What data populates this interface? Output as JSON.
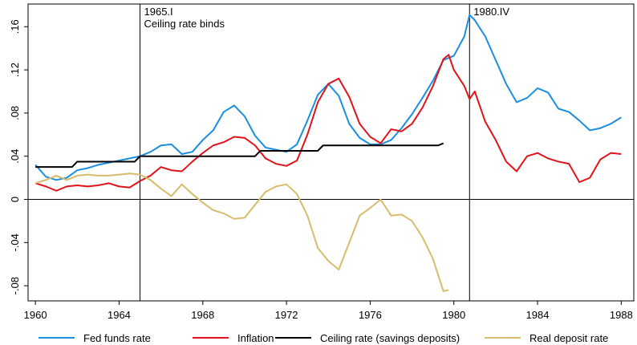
{
  "chart_data": {
    "type": "line",
    "xlim": [
      1959.65,
      1988.6
    ],
    "ylim": [
      -0.094,
      0.181
    ],
    "xticks": [
      1960,
      1964,
      1968,
      1972,
      1976,
      1980,
      1984,
      1988
    ],
    "yticks": [
      {
        "value": 0.16,
        "label": ".16"
      },
      {
        "value": 0.12,
        "label": ".12"
      },
      {
        "value": 0.08,
        "label": ".08"
      },
      {
        "value": 0.04,
        "label": ".04"
      },
      0,
      {
        "value": -0.04,
        "label": "-.04"
      },
      {
        "value": -0.08,
        "label": "-.08"
      }
    ],
    "zero_line": true,
    "vlines": [
      {
        "x": 1965,
        "labels": [
          "1965.I",
          "Ceiling rate binds"
        ]
      },
      {
        "x": 1980.75,
        "labels": [
          "1980.IV"
        ]
      }
    ],
    "series": [
      {
        "name": "Fed funds rate",
        "color": "#1a8fe0",
        "x": [
          1960,
          1960.5,
          1961,
          1961.5,
          1962,
          1962.5,
          1963,
          1963.5,
          1964,
          1964.5,
          1965,
          1965.5,
          1966,
          1966.5,
          1967,
          1967.5,
          1968,
          1968.5,
          1969,
          1969.5,
          1970,
          1970.5,
          1971,
          1971.5,
          1972,
          1972.5,
          1973,
          1973.5,
          1974,
          1974.5,
          1975,
          1975.5,
          1976,
          1976.5,
          1977,
          1977.5,
          1978,
          1978.5,
          1979,
          1979.5,
          1980,
          1980.5,
          1980.75,
          1981,
          1981.5,
          1982,
          1982.5,
          1983,
          1983.5,
          1984,
          1984.5,
          1985,
          1985.5,
          1986,
          1986.5,
          1987,
          1987.5,
          1988
        ],
        "values": [
          0.032,
          0.021,
          0.018,
          0.02,
          0.027,
          0.029,
          0.032,
          0.034,
          0.036,
          0.038,
          0.04,
          0.044,
          0.05,
          0.051,
          0.042,
          0.044,
          0.055,
          0.064,
          0.081,
          0.087,
          0.077,
          0.059,
          0.048,
          0.046,
          0.044,
          0.051,
          0.073,
          0.097,
          0.107,
          0.096,
          0.07,
          0.057,
          0.051,
          0.051,
          0.055,
          0.066,
          0.079,
          0.094,
          0.11,
          0.129,
          0.133,
          0.151,
          0.171,
          0.166,
          0.151,
          0.129,
          0.107,
          0.09,
          0.094,
          0.103,
          0.099,
          0.084,
          0.081,
          0.073,
          0.064,
          0.066,
          0.07,
          0.076
        ]
      },
      {
        "name": "Inflation",
        "color": "#e0131b",
        "x": [
          1960,
          1960.5,
          1961,
          1961.5,
          1962,
          1962.5,
          1963,
          1963.5,
          1964,
          1964.5,
          1965,
          1965.5,
          1966,
          1966.5,
          1967,
          1967.5,
          1968,
          1968.5,
          1969,
          1969.5,
          1970,
          1970.5,
          1971,
          1971.5,
          1972,
          1972.5,
          1973,
          1973.5,
          1974,
          1974.5,
          1975,
          1975.5,
          1976,
          1976.5,
          1977,
          1977.5,
          1978,
          1978.5,
          1979,
          1979.5,
          1979.75,
          1980,
          1980.5,
          1980.75,
          1981,
          1981.5,
          1982,
          1982.5,
          1983,
          1983.5,
          1984,
          1984.5,
          1985,
          1985.5,
          1986,
          1986.5,
          1987,
          1987.5,
          1988
        ],
        "values": [
          0.015,
          0.012,
          0.008,
          0.012,
          0.013,
          0.012,
          0.013,
          0.015,
          0.012,
          0.011,
          0.017,
          0.022,
          0.03,
          0.027,
          0.026,
          0.035,
          0.043,
          0.05,
          0.053,
          0.058,
          0.057,
          0.05,
          0.038,
          0.033,
          0.031,
          0.036,
          0.06,
          0.09,
          0.107,
          0.112,
          0.095,
          0.07,
          0.058,
          0.052,
          0.065,
          0.063,
          0.07,
          0.085,
          0.105,
          0.13,
          0.134,
          0.12,
          0.105,
          0.093,
          0.1,
          0.072,
          0.055,
          0.035,
          0.026,
          0.04,
          0.043,
          0.038,
          0.035,
          0.033,
          0.016,
          0.02,
          0.037,
          0.043,
          0.042
        ]
      },
      {
        "name": "Ceiling rate (savings deposits)",
        "color": "#000000",
        "x": [
          1960,
          1961.75,
          1962,
          1964.75,
          1965,
          1970.5,
          1970.75,
          1973.5,
          1973.75,
          1979.25,
          1979.5
        ],
        "values": [
          0.03,
          0.03,
          0.035,
          0.035,
          0.04,
          0.04,
          0.045,
          0.045,
          0.05,
          0.05,
          0.052
        ]
      },
      {
        "name": "Real deposit rate",
        "color": "#d8bb6b",
        "x": [
          1960,
          1960.5,
          1961,
          1961.5,
          1962,
          1962.5,
          1963,
          1963.5,
          1964,
          1964.5,
          1965,
          1965.5,
          1966,
          1966.5,
          1967,
          1967.5,
          1968,
          1968.5,
          1969,
          1969.5,
          1970,
          1970.5,
          1971,
          1971.5,
          1972,
          1972.5,
          1973,
          1973.5,
          1974,
          1974.5,
          1975,
          1975.5,
          1976,
          1976.5,
          1977,
          1977.5,
          1978,
          1978.5,
          1979,
          1979.5,
          1979.75
        ],
        "values": [
          0.015,
          0.018,
          0.022,
          0.018,
          0.022,
          0.023,
          0.022,
          0.022,
          0.023,
          0.024,
          0.023,
          0.018,
          0.01,
          0.003,
          0.014,
          0.005,
          -0.003,
          -0.01,
          -0.013,
          -0.018,
          -0.017,
          -0.005,
          0.007,
          0.012,
          0.014,
          0.005,
          -0.015,
          -0.045,
          -0.057,
          -0.065,
          -0.04,
          -0.015,
          -0.008,
          0.0,
          -0.015,
          -0.014,
          -0.02,
          -0.035,
          -0.055,
          -0.085,
          -0.084
        ]
      }
    ]
  }
}
